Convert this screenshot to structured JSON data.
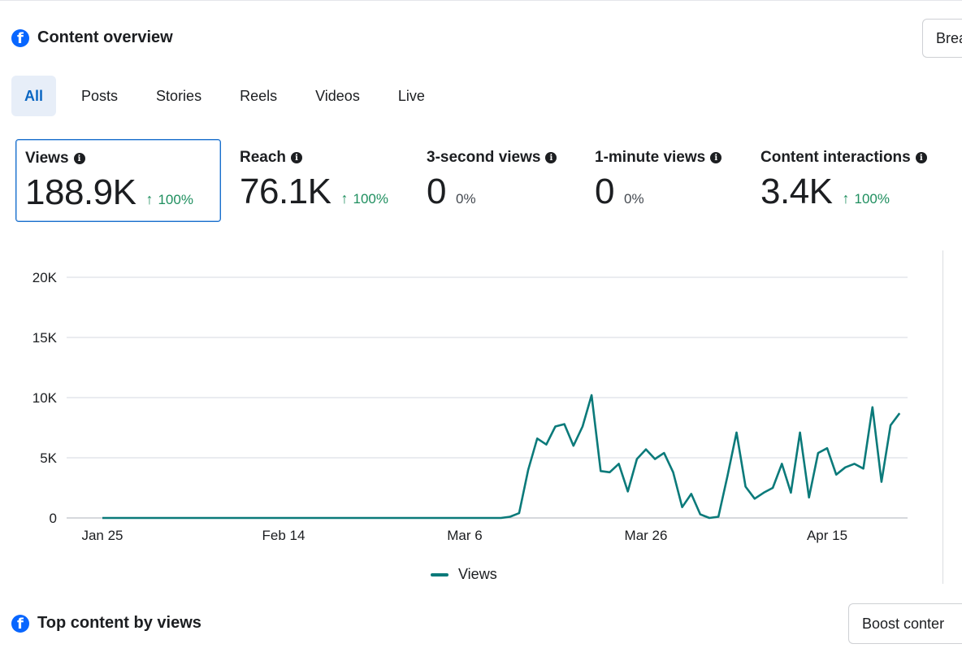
{
  "header": {
    "title": "Content overview",
    "edge_button": "Brea"
  },
  "tabs": [
    {
      "label": "All",
      "active": true
    },
    {
      "label": "Posts",
      "active": false
    },
    {
      "label": "Stories",
      "active": false
    },
    {
      "label": "Reels",
      "active": false
    },
    {
      "label": "Videos",
      "active": false
    },
    {
      "label": "Live",
      "active": false
    }
  ],
  "metrics": [
    {
      "label": "Views",
      "value": "188.9K",
      "change": "100%",
      "direction": "up",
      "selected": true
    },
    {
      "label": "Reach",
      "value": "76.1K",
      "change": "100%",
      "direction": "up",
      "selected": false
    },
    {
      "label": "3-second views",
      "value": "0",
      "change": "0%",
      "direction": "flat",
      "selected": false
    },
    {
      "label": "1-minute views",
      "value": "0",
      "change": "0%",
      "direction": "flat",
      "selected": false
    },
    {
      "label": "Content interactions",
      "value": "3.4K",
      "change": "100%",
      "direction": "up",
      "selected": false
    }
  ],
  "chart_data": {
    "type": "line",
    "ylim": [
      0,
      20000
    ],
    "yticks": [
      0,
      5000,
      10000,
      15000,
      20000
    ],
    "ytick_labels": [
      "0",
      "5K",
      "10K",
      "15K",
      "20K"
    ],
    "xtick_labels": [
      {
        "label": "Jan 25",
        "date": "2025-01-25"
      },
      {
        "label": "Feb 14",
        "date": "2025-02-14"
      },
      {
        "label": "Mar 6",
        "date": "2025-03-06"
      },
      {
        "label": "Mar 26",
        "date": "2025-03-26"
      },
      {
        "label": "Apr 15",
        "date": "2025-04-15"
      }
    ],
    "grid": true,
    "legend": "bottom-center",
    "color": "#0b7a7a",
    "series": [
      {
        "name": "Views",
        "points": [
          [
            "2025-01-25",
            0
          ],
          [
            "2025-03-10",
            0
          ],
          [
            "2025-03-11",
            100
          ],
          [
            "2025-03-12",
            400
          ],
          [
            "2025-03-13",
            4000
          ],
          [
            "2025-03-14",
            6600
          ],
          [
            "2025-03-15",
            6100
          ],
          [
            "2025-03-16",
            7600
          ],
          [
            "2025-03-17",
            7800
          ],
          [
            "2025-03-18",
            6000
          ],
          [
            "2025-03-19",
            7600
          ],
          [
            "2025-03-20",
            10200
          ],
          [
            "2025-03-21",
            3900
          ],
          [
            "2025-03-22",
            3800
          ],
          [
            "2025-03-23",
            4500
          ],
          [
            "2025-03-24",
            2200
          ],
          [
            "2025-03-25",
            4900
          ],
          [
            "2025-03-26",
            5700
          ],
          [
            "2025-03-27",
            4900
          ],
          [
            "2025-03-28",
            5400
          ],
          [
            "2025-03-29",
            3800
          ],
          [
            "2025-03-30",
            900
          ],
          [
            "2025-03-31",
            2000
          ],
          [
            "2025-04-01",
            300
          ],
          [
            "2025-04-02",
            0
          ],
          [
            "2025-04-03",
            100
          ],
          [
            "2025-04-04",
            3500
          ],
          [
            "2025-04-05",
            7100
          ],
          [
            "2025-04-06",
            2600
          ],
          [
            "2025-04-07",
            1600
          ],
          [
            "2025-04-08",
            2100
          ],
          [
            "2025-04-09",
            2500
          ],
          [
            "2025-04-10",
            4500
          ],
          [
            "2025-04-11",
            2100
          ],
          [
            "2025-04-12",
            7100
          ],
          [
            "2025-04-13",
            1700
          ],
          [
            "2025-04-14",
            5400
          ],
          [
            "2025-04-15",
            5800
          ],
          [
            "2025-04-16",
            3600
          ],
          [
            "2025-04-17",
            4200
          ],
          [
            "2025-04-18",
            4500
          ],
          [
            "2025-04-19",
            4100
          ],
          [
            "2025-04-20",
            9200
          ],
          [
            "2025-04-21",
            3000
          ],
          [
            "2025-04-22",
            7700
          ],
          [
            "2025-04-23",
            8700
          ]
        ]
      }
    ]
  },
  "footer": {
    "title": "Top content by views",
    "boost_button": "Boost conter"
  }
}
